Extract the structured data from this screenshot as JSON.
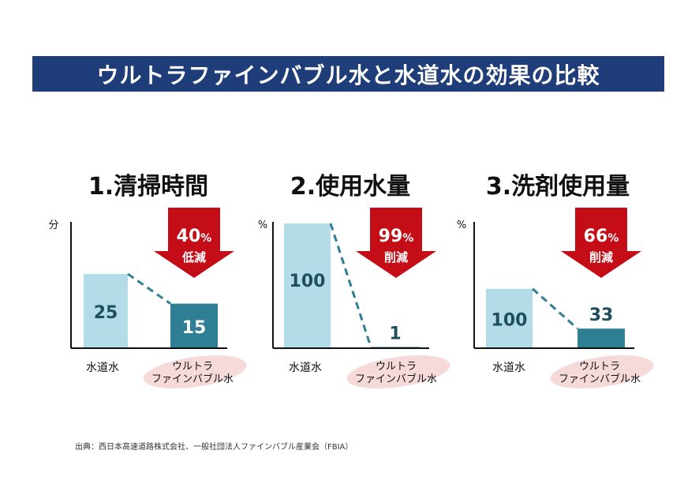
{
  "title": "ウルトラファインバブル水と水道水の効果の比較",
  "source": "出典：西日本高速道路株式会社、一般社団法人ファインバブル産業会（FBIA）",
  "colors": {
    "title_bg": "#1f3d79",
    "tap_water_bar": "#b4dbe8",
    "ufb_water_bar": "#2e7f94",
    "bar_value_text": "#1f4f5e",
    "arrow": "#c40d16",
    "label_highlight": "#f6dada"
  },
  "chart_data": [
    {
      "type": "bar",
      "title": "1.清掃時間",
      "ylabel": "分",
      "categories": [
        "水道水",
        "ウルトラ\nファインバブル水"
      ],
      "values": [
        25,
        15
      ],
      "value_labels": [
        "25",
        "15"
      ],
      "ylim": [
        0,
        42
      ],
      "reduction": {
        "value": "40",
        "unit": "%",
        "label": "低減"
      }
    },
    {
      "type": "bar",
      "title": "2.使用水量",
      "ylabel": "%",
      "categories": [
        "水道水",
        "ウルトラ\nファインバブル水"
      ],
      "values": [
        100,
        1
      ],
      "value_labels": [
        "100",
        "1"
      ],
      "ylim": [
        0,
        100
      ],
      "reduction": {
        "value": "99",
        "unit": "%",
        "label": "削減"
      }
    },
    {
      "type": "bar",
      "title": "3.洗剤使用量",
      "ylabel": "%",
      "categories": [
        "水道水",
        "ウルトラ\nファインバブル水"
      ],
      "values": [
        100,
        33
      ],
      "value_labels": [
        "100",
        "33"
      ],
      "ylim": [
        0,
        210
      ],
      "reduction": {
        "value": "66",
        "unit": "%",
        "label": "削減"
      }
    }
  ]
}
